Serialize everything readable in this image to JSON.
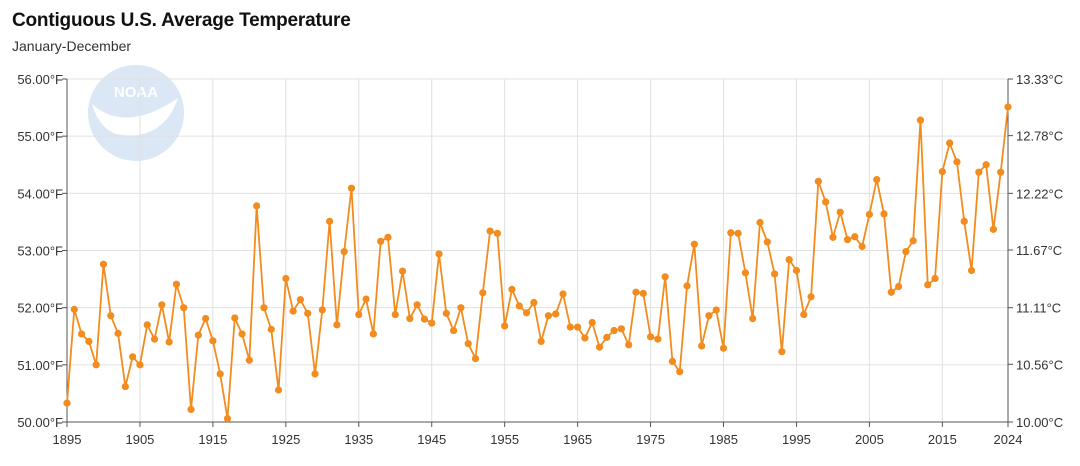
{
  "chart_data": {
    "type": "line",
    "title": "Contiguous U.S. Average Temperature",
    "subtitle": "January-December",
    "logo_text": "NOAA",
    "xlabel": "",
    "ylabel": "",
    "xlim": [
      1895,
      2024
    ],
    "ylim": [
      50,
      56
    ],
    "y2lim": [
      10.0,
      13.33
    ],
    "grid": true,
    "legend": "none",
    "colors": {
      "series": "#f28c1e",
      "grid": "#e0e0e0",
      "axis": "#555555",
      "logo": "#dbe7f4"
    },
    "x_ticks": [
      {
        "value": 1895,
        "label": "1895"
      },
      {
        "value": 1905,
        "label": "1905"
      },
      {
        "value": 1915,
        "label": "1915"
      },
      {
        "value": 1925,
        "label": "1925"
      },
      {
        "value": 1935,
        "label": "1935"
      },
      {
        "value": 1945,
        "label": "1945"
      },
      {
        "value": 1955,
        "label": "1955"
      },
      {
        "value": 1965,
        "label": "1965"
      },
      {
        "value": 1975,
        "label": "1975"
      },
      {
        "value": 1985,
        "label": "1985"
      },
      {
        "value": 1995,
        "label": "1995"
      },
      {
        "value": 2005,
        "label": "2005"
      },
      {
        "value": 2015,
        "label": "2015"
      },
      {
        "value": 2024,
        "label": "2024"
      }
    ],
    "y_ticks_left": [
      {
        "value": 50,
        "label": "50.00°F"
      },
      {
        "value": 51,
        "label": "51.00°F"
      },
      {
        "value": 52,
        "label": "52.00°F"
      },
      {
        "value": 53,
        "label": "53.00°F"
      },
      {
        "value": 54,
        "label": "54.00°F"
      },
      {
        "value": 55,
        "label": "55.00°F"
      },
      {
        "value": 56,
        "label": "56.00°F"
      }
    ],
    "y_ticks_right": [
      {
        "value": 10.0,
        "label": "10.00°C"
      },
      {
        "value": 10.56,
        "label": "10.56°C"
      },
      {
        "value": 11.11,
        "label": "11.11°C"
      },
      {
        "value": 11.67,
        "label": "11.67°C"
      },
      {
        "value": 12.22,
        "label": "12.22°C"
      },
      {
        "value": 12.78,
        "label": "12.78°C"
      },
      {
        "value": 13.33,
        "label": "13.33°C"
      }
    ],
    "series": [
      {
        "x_start": 1895,
        "values": [
          50.33,
          51.97,
          51.54,
          51.41,
          51.0,
          52.76,
          51.86,
          51.55,
          50.62,
          51.14,
          51.0,
          51.7,
          51.45,
          52.05,
          51.4,
          52.41,
          52.0,
          50.22,
          51.52,
          51.81,
          51.42,
          50.84,
          50.06,
          51.82,
          51.54,
          51.08,
          53.78,
          52.0,
          51.62,
          50.56,
          52.51,
          51.94,
          52.14,
          51.9,
          50.84,
          51.96,
          53.51,
          51.7,
          52.98,
          54.09,
          51.88,
          52.15,
          51.54,
          53.16,
          53.23,
          51.88,
          52.64,
          51.81,
          52.05,
          51.8,
          51.73,
          52.94,
          51.9,
          51.6,
          52.0,
          51.37,
          51.11,
          52.26,
          53.34,
          53.3,
          51.68,
          52.32,
          52.03,
          51.91,
          52.09,
          51.41,
          51.86,
          51.89,
          52.24,
          51.66,
          51.66,
          51.47,
          51.74,
          51.31,
          51.48,
          51.6,
          51.63,
          51.35,
          52.27,
          52.25,
          51.49,
          51.45,
          52.54,
          51.06,
          50.88,
          52.38,
          53.11,
          51.33,
          51.86,
          51.96,
          51.29,
          53.31,
          53.3,
          52.61,
          51.81,
          53.49,
          53.15,
          52.59,
          51.23,
          52.84,
          52.65,
          51.88,
          52.19,
          54.21,
          53.85,
          53.23,
          53.67,
          53.19,
          53.24,
          53.07,
          53.63,
          54.24,
          53.64,
          52.27,
          52.37,
          52.98,
          53.17,
          55.28,
          52.4,
          52.51,
          54.38,
          54.88,
          54.55,
          53.51,
          52.65,
          54.37,
          54.5,
          53.37,
          54.37,
          55.51
        ]
      }
    ]
  }
}
